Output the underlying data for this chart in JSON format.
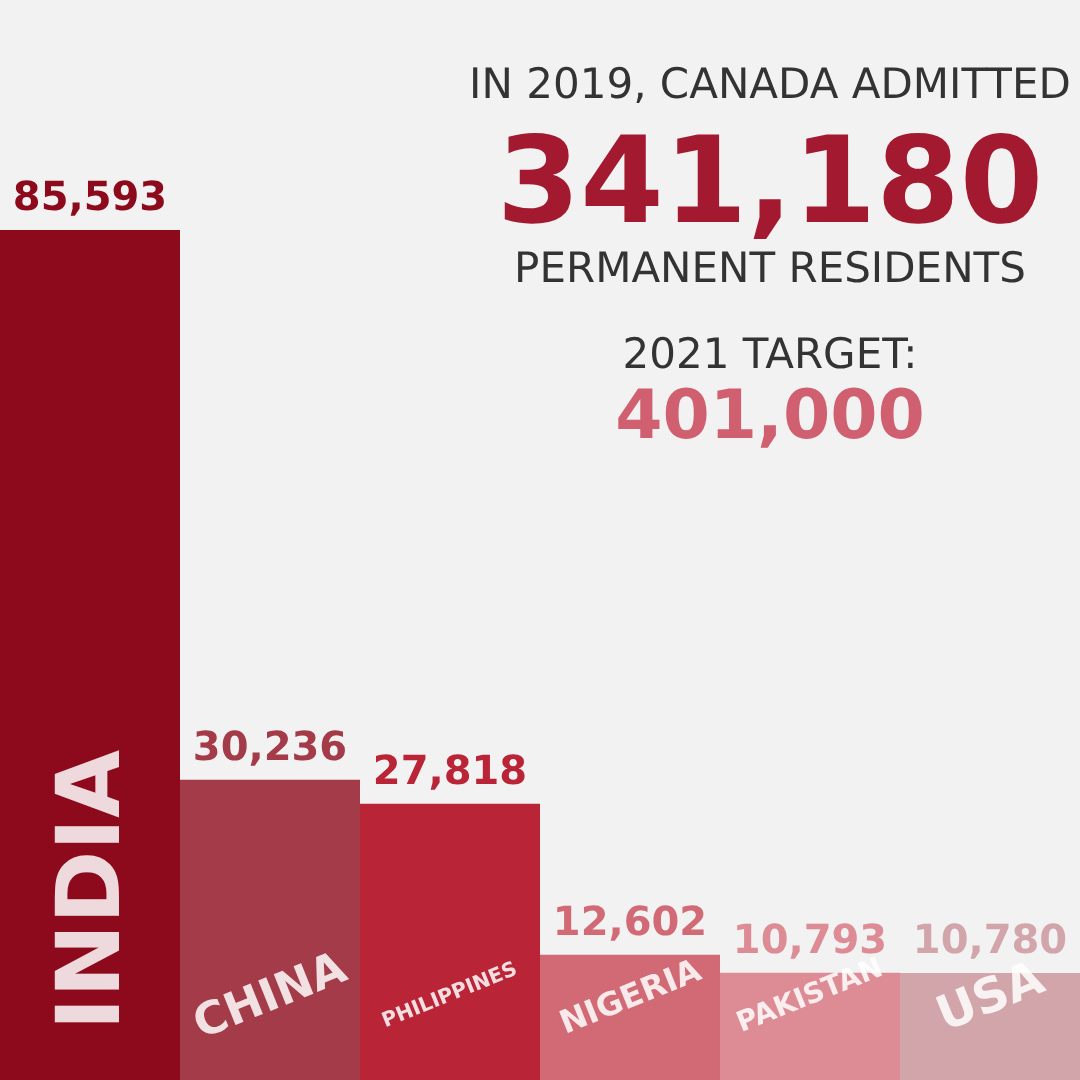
{
  "chart_data": {
    "type": "bar",
    "categories": [
      "INDIA",
      "CHINA",
      "PHILIPPINES",
      "NIGERIA",
      "PAKISTAN",
      "USA"
    ],
    "values": [
      85593,
      30236,
      27818,
      12602,
      10793,
      10780
    ],
    "colors": [
      "#8c0a1c",
      "#a33b48",
      "#b92536",
      "#d26a76",
      "#dd8c95",
      "#d2a5aa"
    ],
    "value_labels": [
      "85,593",
      "30,236",
      "27,818",
      "12,602",
      "10,793",
      "10,780"
    ],
    "annotations": [
      "IN 2019, CANADA ADMITTED",
      "341,180",
      "PERMANENT RESIDENTS",
      "2021 TARGET:",
      "401,000"
    ]
  }
}
